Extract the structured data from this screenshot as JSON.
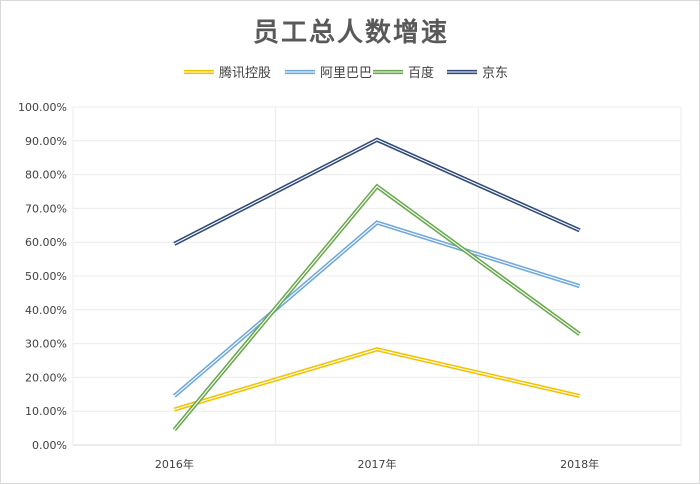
{
  "chart_data": {
    "type": "line",
    "title": "员工总人数增速",
    "categories": [
      "2016年",
      "2017年",
      "2018年"
    ],
    "ylim": [
      0,
      100
    ],
    "y_ticks": [
      {
        "value": 0,
        "label": "0.00%"
      },
      {
        "value": 10,
        "label": "10.00%"
      },
      {
        "value": 20,
        "label": "20.00%"
      },
      {
        "value": 30,
        "label": "30.00%"
      },
      {
        "value": 40,
        "label": "40.00%"
      },
      {
        "value": 50,
        "label": "50.00%"
      },
      {
        "value": 60,
        "label": "60.00%"
      },
      {
        "value": 70,
        "label": "70.00%"
      },
      {
        "value": 80,
        "label": "80.00%"
      },
      {
        "value": 90,
        "label": "90.00%"
      },
      {
        "value": 100,
        "label": "100.00%"
      }
    ],
    "grid": true,
    "legend_position": "top",
    "series": [
      {
        "name": "腾讯控股",
        "color": "#f2c200",
        "values": [
          10.5,
          28.3,
          14.5
        ]
      },
      {
        "name": "阿里巴巴",
        "color": "#6fa8dc",
        "values": [
          14.5,
          65.8,
          47.0
        ]
      },
      {
        "name": "百度",
        "color": "#6aa84f",
        "values": [
          4.5,
          76.5,
          32.8
        ]
      },
      {
        "name": "京东",
        "color": "#2f4a78",
        "values": [
          59.5,
          90.3,
          63.5
        ]
      }
    ]
  }
}
